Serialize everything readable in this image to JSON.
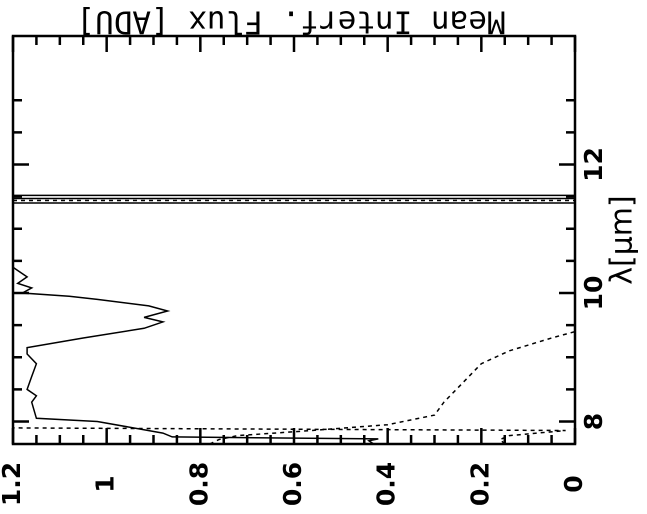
{
  "chart_data": {
    "type": "line",
    "orientation": "rotated-90-clockwise",
    "xlabel": "λ[μm]",
    "ylabel": "Mean Interf. Flux [ADU]",
    "xlim": [
      7.65,
      14.0
    ],
    "ylim": [
      0,
      1.2
    ],
    "x_ticks": [
      8,
      10,
      12
    ],
    "x_tick_labels": [
      "8",
      "10",
      "12"
    ],
    "y_ticks": [
      0,
      0.2,
      0.4,
      0.6,
      0.8,
      1,
      1.2
    ],
    "y_tick_labels": [
      "0",
      "0.2",
      "0.4",
      "0.6",
      "0.8",
      "1",
      "1.2"
    ],
    "grid": false,
    "series": [
      {
        "style": "solid",
        "points": [
          [
            7.65,
            0.43
          ],
          [
            7.7,
            0.44
          ],
          [
            7.73,
            0.42
          ],
          [
            7.76,
            0.86
          ],
          [
            7.82,
            0.88
          ],
          [
            8.0,
            1.02
          ],
          [
            8.05,
            1.15
          ],
          [
            8.3,
            1.16
          ],
          [
            8.4,
            1.15
          ],
          [
            8.5,
            1.17
          ],
          [
            8.7,
            1.16
          ],
          [
            8.9,
            1.15
          ],
          [
            9.05,
            1.17
          ],
          [
            9.15,
            1.17
          ],
          [
            9.3,
            1.05
          ],
          [
            9.45,
            0.92
          ],
          [
            9.55,
            0.88
          ],
          [
            9.62,
            0.92
          ],
          [
            9.72,
            0.87
          ],
          [
            9.8,
            0.91
          ],
          [
            9.9,
            1.02
          ],
          [
            9.95,
            1.08
          ],
          [
            10.0,
            1.18
          ],
          [
            10.08,
            1.16
          ],
          [
            10.15,
            1.19
          ],
          [
            10.25,
            1.17
          ],
          [
            10.35,
            1.19
          ],
          [
            10.4,
            1.2
          ]
        ]
      },
      {
        "style": "dashed",
        "points": [
          [
            7.65,
            0.78
          ],
          [
            7.72,
            0.76
          ],
          [
            7.78,
            0.72
          ],
          [
            7.85,
            0.58
          ],
          [
            7.95,
            0.4
          ],
          [
            8.1,
            0.3
          ],
          [
            8.3,
            0.28
          ],
          [
            8.6,
            0.24
          ],
          [
            8.9,
            0.2
          ],
          [
            9.1,
            0.14
          ],
          [
            9.3,
            0.05
          ],
          [
            9.4,
            0.0
          ]
        ]
      },
      {
        "style": "dashed",
        "points": [
          [
            7.65,
            0.15
          ],
          [
            7.72,
            0.16
          ],
          [
            7.78,
            0.14
          ],
          [
            7.82,
            0.08
          ],
          [
            7.86,
            0.02
          ],
          [
            7.9,
            1.2
          ]
        ]
      }
    ],
    "vertical_lines": [
      {
        "x": 11.4,
        "style": "solid"
      },
      {
        "x": 11.44,
        "style": "dashed"
      },
      {
        "x": 11.47,
        "style": "solid"
      },
      {
        "x": 11.52,
        "style": "solid"
      }
    ]
  }
}
